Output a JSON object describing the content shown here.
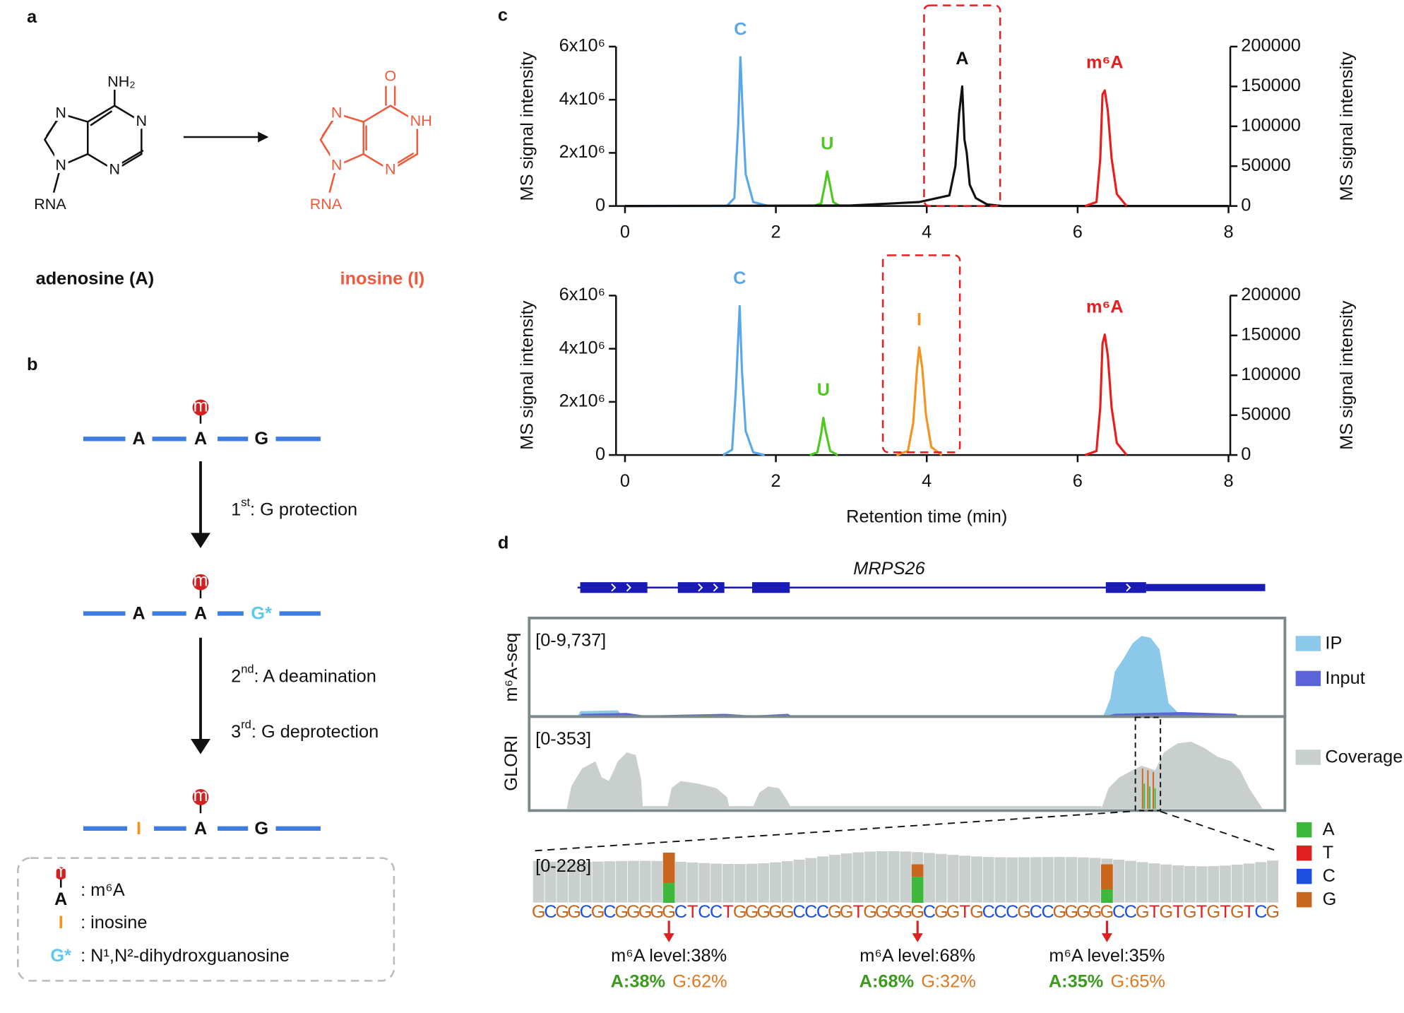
{
  "panel_labels": [
    "a",
    "b",
    "c",
    "d"
  ],
  "panel_a": {
    "adenosine": {
      "name": "adenosine (A)",
      "atoms": [
        "NH₂",
        "N",
        "N",
        "N",
        "N",
        "RNA"
      ]
    },
    "inosine": {
      "name": "inosine (I)",
      "atoms": [
        "O",
        "NH",
        "N",
        "N",
        "N",
        "RNA"
      ]
    }
  },
  "panel_b": {
    "rows": [
      [
        "A",
        "A",
        "G"
      ],
      [
        "A",
        "A",
        "G*"
      ],
      [
        "I",
        "A",
        "G"
      ]
    ],
    "modification": "m",
    "steps": [
      [
        "1",
        "st",
        ": G protection"
      ],
      [
        "2",
        "nd",
        ": A deamination"
      ],
      [
        "3",
        "rd",
        ": G deprotection"
      ]
    ],
    "legend": [
      {
        "symbol": "A",
        "text": ": m⁶A"
      },
      {
        "symbol": "I",
        "text": ": inosine"
      },
      {
        "symbol": "G*",
        "text": ": N¹,N²-dihydroxguanosine"
      }
    ]
  },
  "chart_data": [
    {
      "type": "line",
      "ylabel": "MS signal intensity",
      "y2label": "MS signal intensity",
      "xlim": [
        0,
        8
      ],
      "xticks": [
        0,
        2,
        4,
        6,
        8
      ],
      "ylim": [
        0,
        6000000
      ],
      "yticks": [
        0,
        {
          "value": 2000000,
          "label": "2x10⁶"
        },
        {
          "value": 4000000,
          "label": "4x10⁶"
        },
        {
          "value": 6000000,
          "label": "6x10⁶"
        }
      ],
      "y2lim": [
        0,
        200000
      ],
      "y2ticks": [
        0,
        50000,
        100000,
        150000,
        200000
      ],
      "series": [
        {
          "name": "C",
          "color": "#5aa8e8",
          "x": [
            0,
            1.35,
            1.45,
            1.5,
            1.53,
            1.56,
            1.6,
            1.7,
            1.9
          ],
          "values": [
            0,
            0,
            300000,
            3000000,
            5600000,
            3500000,
            1200000,
            150000,
            0
          ]
        },
        {
          "name": "U",
          "color": "#4cc81e",
          "x": [
            2.5,
            2.6,
            2.65,
            2.68,
            2.71,
            2.76,
            2.85
          ],
          "values": [
            0,
            100000,
            800000,
            1300000,
            900000,
            150000,
            0
          ]
        },
        {
          "name": "A",
          "color": "#111111",
          "x": [
            0,
            3.0,
            3.9,
            4.3,
            4.38,
            4.43,
            4.47,
            4.5,
            4.53,
            4.57,
            4.65,
            4.8,
            5.0,
            8
          ],
          "values": [
            0,
            20000,
            150000,
            400000,
            1500000,
            3500000,
            4500000,
            2500000,
            2000000,
            800000,
            300000,
            60000,
            0,
            0
          ]
        },
        {
          "name": "m⁶A",
          "color": "#e81e1e",
          "axis": "y2",
          "x": [
            6.1,
            6.25,
            6.3,
            6.33,
            6.36,
            6.4,
            6.45,
            6.52,
            6.65
          ],
          "values": [
            0,
            5000,
            60000,
            140000,
            145000,
            120000,
            60000,
            15000,
            0
          ]
        }
      ]
    },
    {
      "type": "line",
      "ylabel": "MS signal intensity",
      "y2label": "MS signal intensity",
      "xlabel": "Retention time (min)",
      "xlim": [
        0,
        8
      ],
      "xticks": [
        0,
        2,
        4,
        6,
        8
      ],
      "ylim": [
        0,
        6000000
      ],
      "yticks": [
        0,
        {
          "value": 2000000,
          "label": "2x10⁶"
        },
        {
          "value": 4000000,
          "label": "4x10⁶"
        },
        {
          "value": 6000000,
          "label": "6x10⁶"
        }
      ],
      "y2lim": [
        0,
        200000
      ],
      "y2ticks": [
        0,
        50000,
        100000,
        150000,
        200000
      ],
      "series": [
        {
          "name": "C",
          "color": "#5aa8e8",
          "x": [
            1.3,
            1.42,
            1.47,
            1.52,
            1.55,
            1.6,
            1.7,
            1.85
          ],
          "values": [
            0,
            200000,
            2500000,
            5600000,
            3200000,
            900000,
            100000,
            0
          ]
        },
        {
          "name": "U",
          "color": "#4cc81e",
          "x": [
            2.45,
            2.55,
            2.6,
            2.63,
            2.66,
            2.72,
            2.82
          ],
          "values": [
            0,
            100000,
            800000,
            1400000,
            900000,
            150000,
            0
          ]
        },
        {
          "name": "I",
          "color": "#f59320",
          "x": [
            3.6,
            3.75,
            3.82,
            3.87,
            3.9,
            3.94,
            3.99,
            4.06,
            4.2
          ],
          "values": [
            0,
            150000,
            1200000,
            3200000,
            4050000,
            3300000,
            1500000,
            300000,
            0
          ]
        },
        {
          "name": "m⁶A",
          "color": "#e81e1e",
          "axis": "y2",
          "x": [
            6.1,
            6.25,
            6.3,
            6.33,
            6.36,
            6.4,
            6.45,
            6.52,
            6.65
          ],
          "values": [
            0,
            5000,
            60000,
            140000,
            151000,
            125000,
            60000,
            15000,
            0
          ]
        }
      ]
    }
  ],
  "panel_d": {
    "gene": "MRPS26",
    "tracks": [
      {
        "name": "m⁶A-seq",
        "range": "[0-9,737]",
        "legend": [
          "IP",
          "Input"
        ]
      },
      {
        "name": "GLORI",
        "range": "[0-353]",
        "legend": [
          "Coverage"
        ]
      }
    ],
    "zoom_range": "[0-228]",
    "bases": [
      "A",
      "T",
      "C",
      "G"
    ],
    "sequence": "GCGGCGCGGGGGCTCCTGGGGGCCCGGTGGGGGCGGTGCCCGCCGGGGGCCGTGTGTGTGTCG",
    "sites": [
      {
        "level": "m⁶A level:38%",
        "a": "A:38%",
        "g": "G:62%"
      },
      {
        "level": "m⁶A level:68%",
        "a": "A:68%",
        "g": "G:32%"
      },
      {
        "level": "m⁶A level:35%",
        "a": "A:35%",
        "g": "G:65%"
      }
    ]
  }
}
